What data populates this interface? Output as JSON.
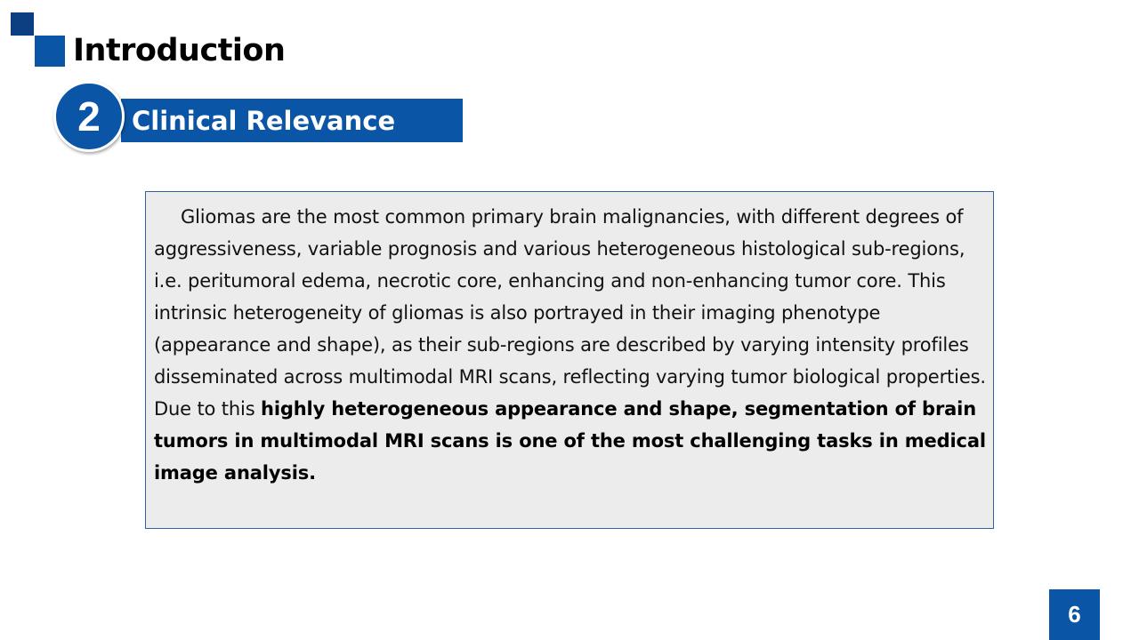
{
  "colors": {
    "primary": "#0a55a6",
    "dark_primary": "#0b3f82",
    "box_border": "#2e5fa8",
    "box_background": "#ececec"
  },
  "header": {
    "title": "Introduction"
  },
  "section": {
    "number": "2",
    "label": "Clinical Relevance"
  },
  "content": {
    "text_plain": "Gliomas are the most common primary brain malignancies, with different degrees of aggressiveness, variable prognosis and various heterogeneous histological sub-regions, i.e. peritumoral edema, necrotic core, enhancing and non-enhancing tumor core. This intrinsic heterogeneity of gliomas is also portrayed in their imaging phenotype (appearance and shape), as their sub-regions are described by varying intensity profiles disseminated across multimodal MRI scans, reflecting varying tumor biological properties. Due to this ",
    "text_bold": "highly heterogeneous appearance and shape, segmentation of brain tumors in multimodal MRI scans is one of the most challenging tasks in medical image analysis."
  },
  "footer": {
    "page_number": "6"
  }
}
